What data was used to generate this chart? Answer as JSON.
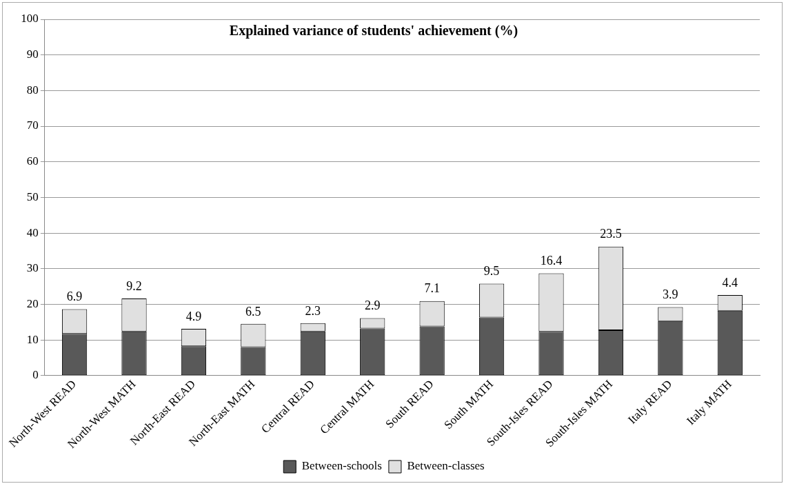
{
  "chart_data": {
    "type": "bar",
    "title": "Explained variance of students' achievement (%)",
    "stacked": true,
    "categories": [
      "North-West READ",
      "North-West MATH",
      "North-East READ",
      "North-East MATH",
      "Central READ",
      "Central MATH",
      "South READ",
      "South MATH",
      "South-Isles READ",
      "South-Isles MATH",
      "Italy READ",
      "Italy MATH"
    ],
    "series": [
      {
        "name": "Between-schools",
        "color": "#595959",
        "values": [
          11.7,
          12.4,
          8.2,
          8.0,
          12.4,
          13.2,
          13.8,
          16.3,
          12.3,
          12.7,
          15.3,
          18.2
        ]
      },
      {
        "name": "Between-classes",
        "color": "#e0e0e0",
        "values": [
          6.9,
          9.2,
          4.9,
          6.5,
          2.3,
          2.9,
          7.1,
          9.5,
          16.4,
          23.5,
          3.9,
          4.4
        ],
        "value_labels": [
          "6.9",
          "9.2",
          "4.9",
          "6.5",
          "2.3",
          "2.9",
          "7.1",
          "9.5",
          "16.4",
          "23.5",
          "3.9",
          "4.4"
        ]
      }
    ],
    "ylim": [
      0,
      100
    ],
    "yticks": [
      0,
      10,
      20,
      30,
      40,
      50,
      60,
      70,
      80,
      90,
      100
    ],
    "grid": "y",
    "legend": "bottom"
  }
}
